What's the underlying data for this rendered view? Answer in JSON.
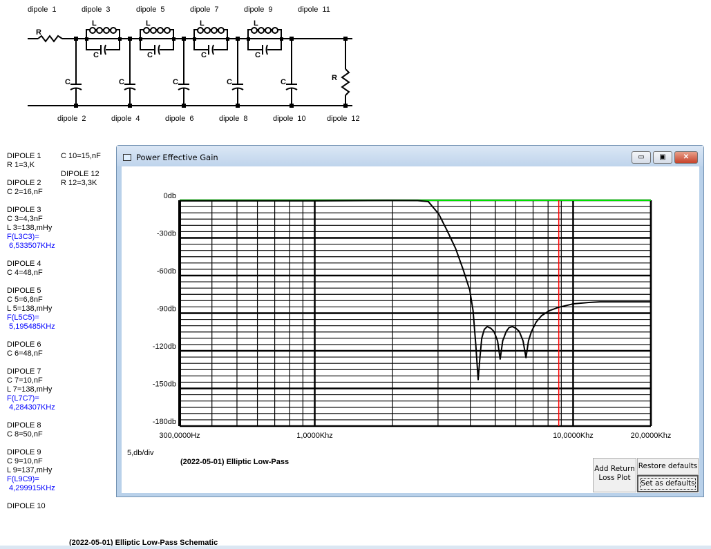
{
  "schematic": {
    "top_labels": [
      "dipole 1",
      "dipole 3",
      "dipole 5",
      "dipole 7",
      "dipole 9",
      "dipole 11"
    ],
    "bottom_labels": [
      "dipole 2",
      "dipole 4",
      "dipole 6",
      "dipole 8",
      "dipole 10",
      "dipole 12"
    ],
    "symbols": {
      "resistor": "R",
      "inductor": "L",
      "capacitor": "C"
    },
    "caption": "(2022-05-01) Elliptic Low-Pass Schematic"
  },
  "components": {
    "col1": [
      {
        "title": "DIPOLE 1",
        "lines": [
          "R 1=3,K"
        ]
      },
      {
        "title": "DIPOLE 2",
        "lines": [
          "C 2=16,nF"
        ]
      },
      {
        "title": "DIPOLE 3",
        "lines": [
          "C 3=4,3nF",
          "L 3=138,mHy"
        ],
        "freq": [
          "F(L3C3)=",
          " 6,533507KHz"
        ]
      },
      {
        "title": "DIPOLE 4",
        "lines": [
          "C 4=48,nF"
        ]
      },
      {
        "title": "DIPOLE 5",
        "lines": [
          "C 5=6,8nF",
          "L 5=138,mHy"
        ],
        "freq": [
          "F(L5C5)=",
          " 5,195485KHz"
        ]
      },
      {
        "title": "DIPOLE 6",
        "lines": [
          "C 6=48,nF"
        ]
      },
      {
        "title": "DIPOLE 7",
        "lines": [
          "C 7=10,nF",
          "L 7=138,mHy"
        ],
        "freq": [
          "F(L7C7)=",
          " 4,284307KHz"
        ]
      },
      {
        "title": "DIPOLE 8",
        "lines": [
          "C 8=50,nF"
        ]
      },
      {
        "title": "DIPOLE 9",
        "lines": [
          "C 9=10,nF",
          "L 9=137,mHy"
        ],
        "freq": [
          "F(L9C9)=",
          " 4,299915KHz"
        ]
      },
      {
        "title": "DIPOLE 10",
        "lines": []
      }
    ],
    "col2": [
      {
        "title": "",
        "lines": [
          "C 10=15,nF"
        ]
      },
      {
        "title": "DIPOLE 12",
        "lines": [
          "R 12=3,3K"
        ]
      }
    ],
    "freq_color": "#0000ff"
  },
  "window": {
    "title": "Power Effective Gain",
    "minimize": "▭",
    "maximize": "▣",
    "close": "✕",
    "scale_label": "5,db/div",
    "plot_title": "(2022-05-01) Elliptic Low-Pass",
    "buttons": {
      "add_return_loss": "Add Return Loss Plot",
      "restore_defaults": "Restore defaults",
      "set_defaults": "Set as defaults"
    }
  },
  "chart_data": {
    "type": "line",
    "x_scale": "log",
    "xlim_hz": [
      300,
      20000
    ],
    "ylim_db": [
      -180,
      0
    ],
    "y_grid_step_db": 5,
    "y_ticks": [
      {
        "v": 0,
        "label": "0db"
      },
      {
        "v": -30,
        "label": "-30db"
      },
      {
        "v": -60,
        "label": "-60db"
      },
      {
        "v": -90,
        "label": "-90db"
      },
      {
        "v": -120,
        "label": "-120db"
      },
      {
        "v": -150,
        "label": "-150db"
      },
      {
        "v": -180,
        "label": "-180db"
      }
    ],
    "x_ticks": [
      {
        "v": 300,
        "label": "300,0000Hz"
      },
      {
        "v": 1000,
        "label": "1,0000Khz"
      },
      {
        "v": 10000,
        "label": "10,0000Khz"
      },
      {
        "v": 20000,
        "label": "20,0000Khz"
      }
    ],
    "grid": true,
    "reference_line_db": 0,
    "reference_color": "#00e000",
    "marker_hz": 8800,
    "marker_color": "#ff0000",
    "series": [
      {
        "color": "#000000",
        "points": [
          [
            300,
            -0.5
          ],
          [
            1000,
            -0.5
          ],
          [
            1900,
            -0.2
          ],
          [
            2500,
            -0.3
          ],
          [
            2750,
            -1
          ],
          [
            3020,
            -11
          ],
          [
            3250,
            -24
          ],
          [
            3510,
            -38.5
          ],
          [
            3750,
            -55
          ],
          [
            3980,
            -71.5
          ],
          [
            4100,
            -88
          ],
          [
            4200,
            -115
          ],
          [
            4290,
            -143
          ],
          [
            4360,
            -125
          ],
          [
            4430,
            -110
          ],
          [
            4530,
            -103
          ],
          [
            4650,
            -100.7
          ],
          [
            4800,
            -102
          ],
          [
            4940,
            -104.6
          ],
          [
            5100,
            -112
          ],
          [
            5220,
            -126.6
          ],
          [
            5340,
            -112
          ],
          [
            5510,
            -104.6
          ],
          [
            5650,
            -101.5
          ],
          [
            5820,
            -100.7
          ],
          [
            6000,
            -102
          ],
          [
            6190,
            -104.6
          ],
          [
            6400,
            -112
          ],
          [
            6570,
            -125.5
          ],
          [
            6720,
            -112
          ],
          [
            6900,
            -104.6
          ],
          [
            7200,
            -97
          ],
          [
            7550,
            -92
          ],
          [
            8100,
            -88
          ],
          [
            8800,
            -85.3
          ],
          [
            10000,
            -82.6
          ],
          [
            11500,
            -81.5
          ],
          [
            12700,
            -81
          ],
          [
            20000,
            -81
          ]
        ]
      }
    ]
  }
}
